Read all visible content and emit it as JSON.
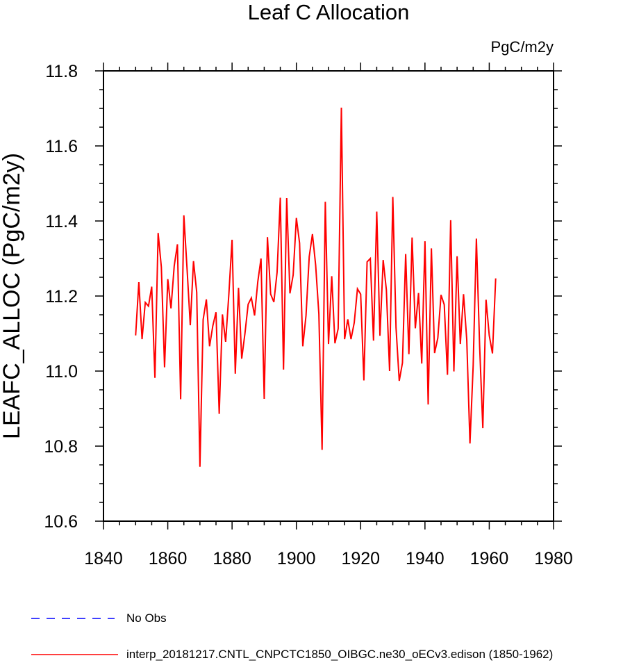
{
  "chart_data": {
    "type": "line",
    "title": "Leaf C Allocation",
    "units": "PgC/m2y",
    "ylabel": "LEAFC_ALLOC  (PgC/m2y)",
    "xlabel": "",
    "xlim": [
      1840,
      1980
    ],
    "ylim": [
      10.6,
      11.8
    ],
    "xticks": [
      "1840",
      "1860",
      "1880",
      "1900",
      "1920",
      "1940",
      "1960",
      "1980"
    ],
    "yticks": [
      "10.6",
      "10.8",
      "11.0",
      "11.2",
      "11.4",
      "11.6",
      "11.8"
    ],
    "series": [
      {
        "name": "interp_20181217.CNTL_CNPCTC1850_OIBGC.ne30_oECv3.edison (1850-1962)",
        "color": "#ff0000",
        "x_start": 1850,
        "values": [
          11.095,
          11.237,
          11.085,
          11.183,
          11.173,
          11.225,
          10.982,
          11.368,
          11.277,
          11.01,
          11.245,
          11.167,
          11.28,
          11.338,
          10.925,
          11.415,
          11.272,
          11.122,
          11.293,
          11.21,
          10.745,
          11.137,
          11.191,
          11.066,
          11.12,
          11.157,
          10.886,
          11.151,
          11.078,
          11.205,
          11.35,
          10.993,
          11.222,
          11.033,
          11.1,
          11.178,
          11.195,
          11.148,
          11.238,
          11.3,
          10.926,
          11.357,
          11.205,
          11.184,
          11.263,
          11.462,
          11.004,
          11.461,
          11.207,
          11.256,
          11.408,
          11.341,
          11.066,
          11.148,
          11.305,
          11.365,
          11.282,
          11.152,
          10.79,
          11.451,
          11.072,
          11.253,
          11.074,
          11.113,
          11.702,
          11.085,
          11.138,
          11.085,
          11.129,
          11.219,
          11.205,
          10.975,
          11.291,
          11.3,
          11.081,
          11.425,
          11.094,
          11.296,
          11.216,
          11.0,
          11.464,
          11.116,
          10.974,
          11.022,
          11.312,
          11.045,
          11.356,
          11.114,
          11.208,
          11.02,
          11.346,
          10.911,
          11.327,
          11.048,
          11.088,
          11.203,
          11.177,
          10.99,
          11.402,
          10.999,
          11.306,
          11.072,
          11.205,
          11.084,
          10.807,
          11.015,
          11.353,
          11.069,
          10.848,
          11.19,
          11.095,
          11.047,
          11.247
        ]
      }
    ],
    "legend": [
      {
        "label": "No Obs",
        "color": "#0000ff",
        "style": "dashed"
      },
      {
        "label": "interp_20181217.CNTL_CNPCTC1850_OIBGC.ne30_oECv3.edison (1850-1962)",
        "color": "#ff0000",
        "style": "solid"
      }
    ]
  }
}
